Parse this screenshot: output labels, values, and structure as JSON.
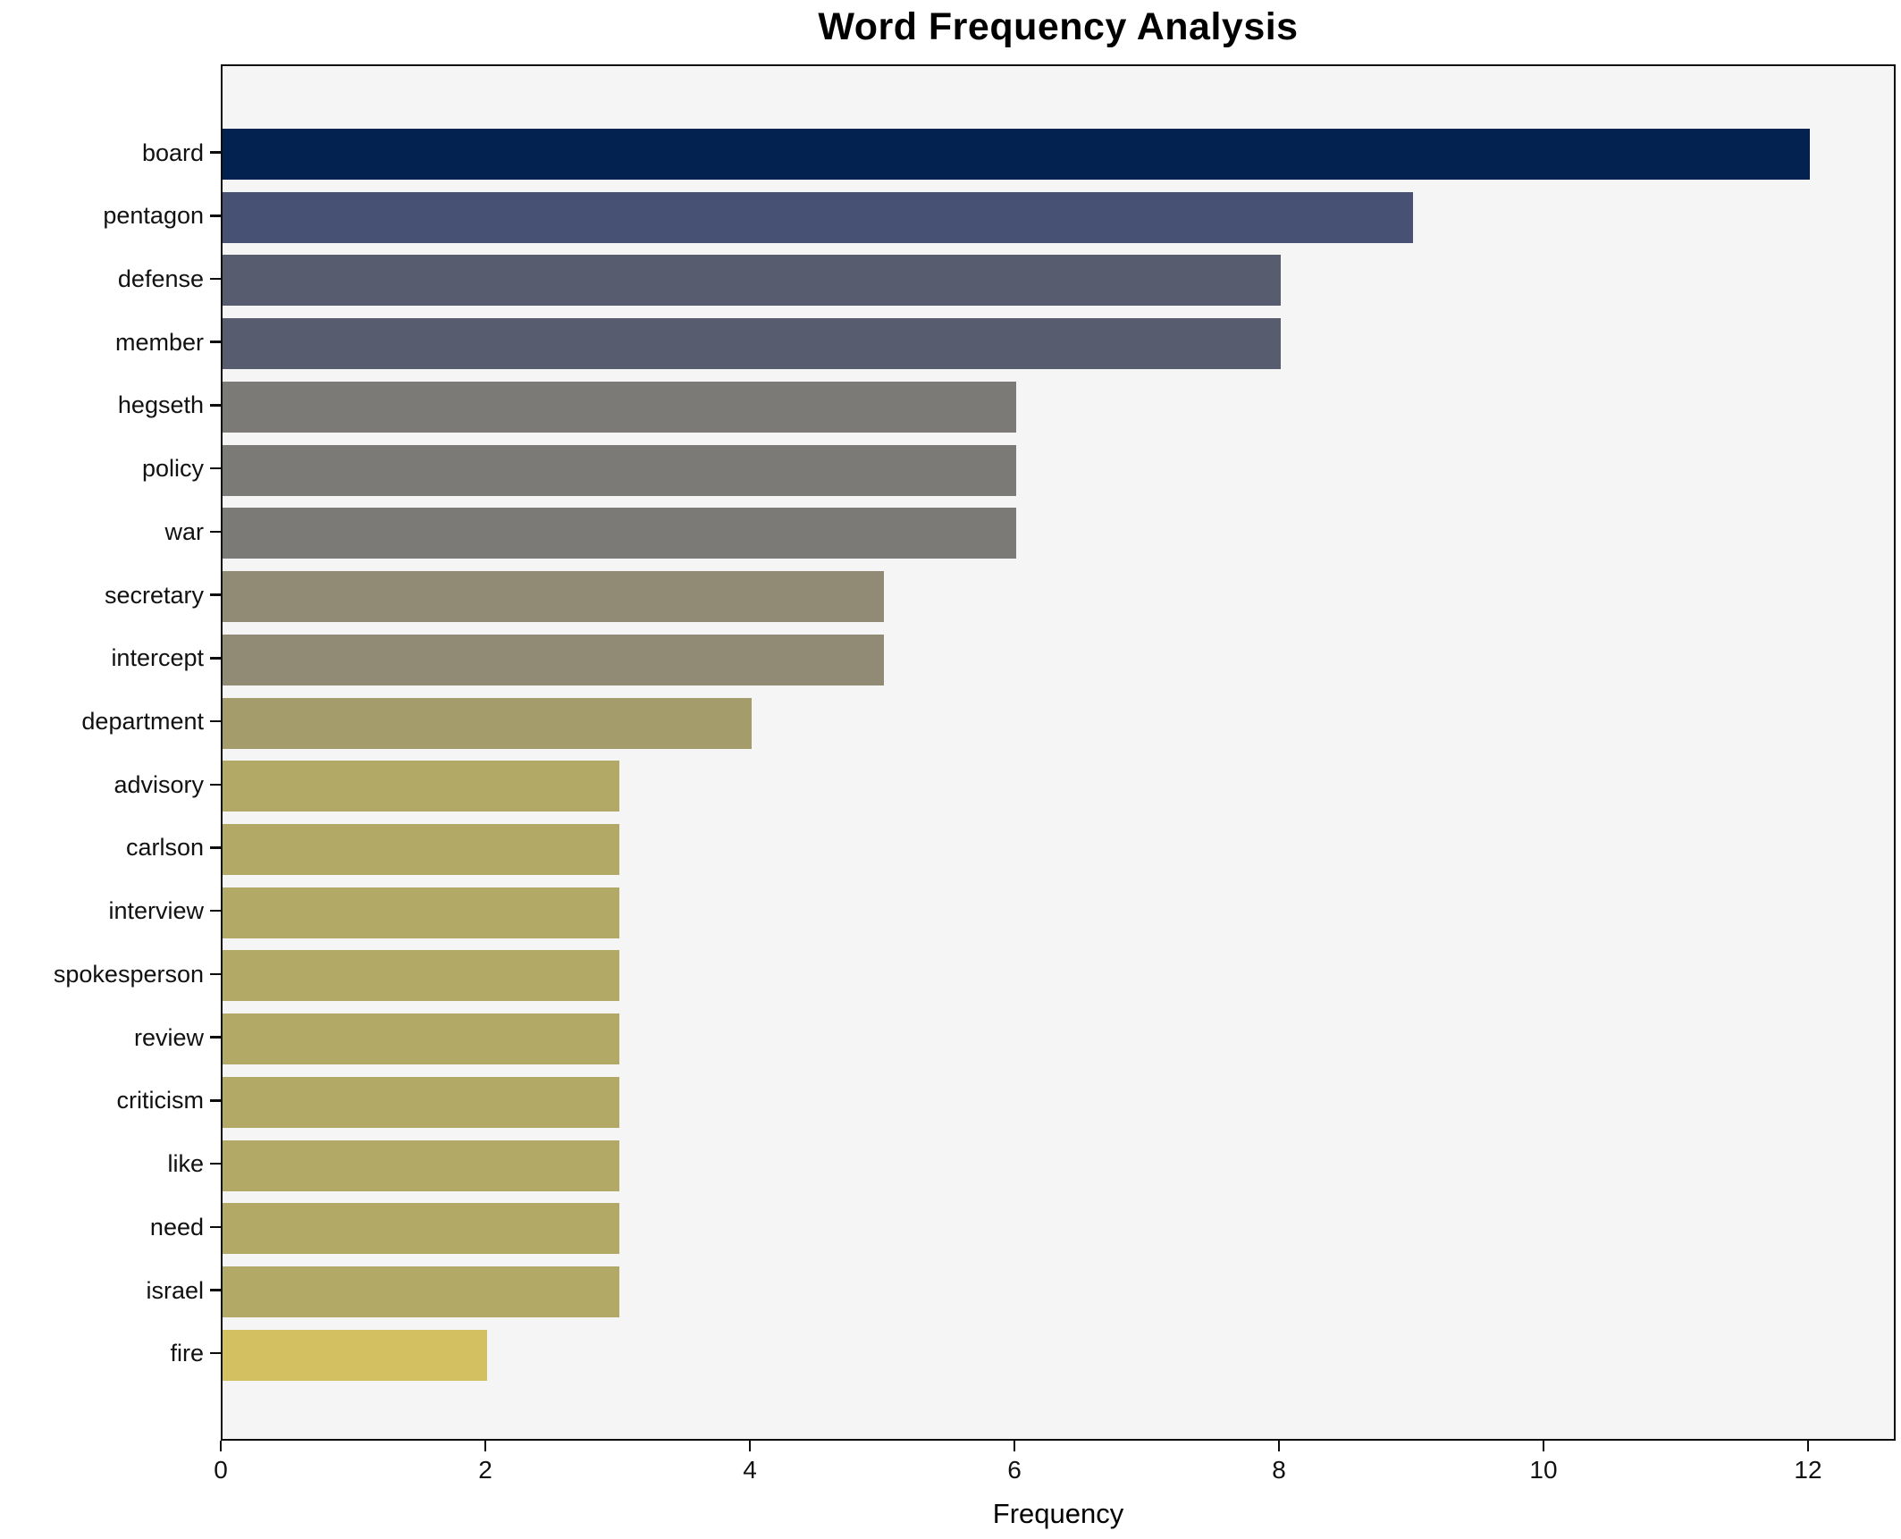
{
  "chart_data": {
    "type": "bar",
    "orientation": "horizontal",
    "title": "Word Frequency Analysis",
    "xlabel": "Frequency",
    "ylabel": "",
    "categories": [
      "board",
      "pentagon",
      "defense",
      "member",
      "hegseth",
      "policy",
      "war",
      "secretary",
      "intercept",
      "department",
      "advisory",
      "carlson",
      "interview",
      "spokesperson",
      "review",
      "criticism",
      "like",
      "need",
      "israel",
      "fire"
    ],
    "values": [
      12,
      9,
      8,
      8,
      6,
      6,
      6,
      5,
      5,
      4,
      3,
      3,
      3,
      3,
      3,
      3,
      3,
      3,
      3,
      2
    ],
    "bar_colors": [
      "#03224f",
      "#475174",
      "#575d6e",
      "#575d6e",
      "#7b7a76",
      "#7b7a76",
      "#7b7a76",
      "#918a74",
      "#918a74",
      "#a49c6b",
      "#b3a966",
      "#b3a966",
      "#b3a966",
      "#b3a966",
      "#b3a966",
      "#b3a966",
      "#b3a966",
      "#b3a966",
      "#b3a966",
      "#d3c161"
    ],
    "xticks": [
      0,
      2,
      4,
      6,
      8,
      10,
      12
    ],
    "xlim": [
      0,
      12.66
    ],
    "grid": false,
    "legend_visible": false,
    "plot_background": "#f5f5f6",
    "figure_background": "#ffffff",
    "spine_color": "#0d0d0d",
    "text_color": "#000000"
  }
}
